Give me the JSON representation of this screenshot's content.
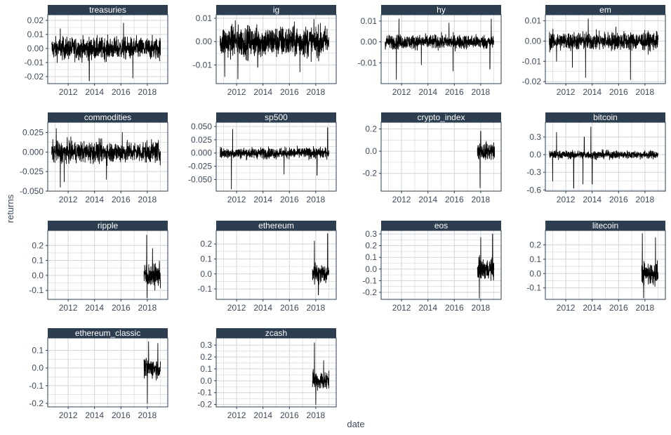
{
  "colors": {
    "strip_bg": "#2c3e50",
    "strip_text": "#ffffff",
    "panel_border": "#2c3e50",
    "grid": "#cfd3d8",
    "series": "#000000",
    "tick_text": "#3d4a5c"
  },
  "chart_data": {
    "type": "line",
    "layout": "facet-wrap 4 columns, free y scales",
    "xlabel": "date",
    "ylabel": "returns",
    "x_ticks": [
      "2012",
      "2014",
      "2016",
      "2018"
    ],
    "xlim": [
      "2010-06-01",
      "2019-06-30"
    ],
    "grid": true,
    "panels": [
      {
        "name": "treasuries",
        "start": 2010.75,
        "end": 2019.0,
        "amp": 0.007,
        "spikes": [
          [
            2013.6,
            -0.023
          ],
          [
            2016.2,
            0.018
          ],
          [
            2016.9,
            -0.021
          ],
          [
            2011.4,
            0.014
          ]
        ],
        "ylim": [
          -0.025,
          0.024
        ],
        "y_ticks": [
          -0.02,
          -0.01,
          0.0,
          0.01,
          0.02
        ],
        "y_labels": [
          "-0.02",
          "-0.01",
          "0.00",
          "0.01",
          "0.02"
        ]
      },
      {
        "name": "ig",
        "start": 2010.75,
        "end": 2019.0,
        "amp": 0.006,
        "spikes": [
          [
            2011.1,
            -0.015
          ],
          [
            2012.1,
            -0.016
          ],
          [
            2013.6,
            -0.011
          ],
          [
            2016.8,
            -0.013
          ],
          [
            2011.9,
            0.009
          ]
        ],
        "ylim": [
          -0.018,
          0.0115
        ],
        "y_ticks": [
          -0.01,
          0.0,
          0.01
        ],
        "y_labels": [
          "-0.01",
          "0.00",
          "0.01"
        ]
      },
      {
        "name": "hy",
        "start": 2010.75,
        "end": 2019.0,
        "amp": 0.003,
        "spikes": [
          [
            2011.6,
            -0.018
          ],
          [
            2011.8,
            0.011
          ],
          [
            2013.5,
            -0.011
          ],
          [
            2015.9,
            -0.014
          ],
          [
            2015.6,
            0.009
          ],
          [
            2018.7,
            -0.013
          ],
          [
            2018.8,
            0.011
          ]
        ],
        "ylim": [
          -0.02,
          0.013
        ],
        "y_ticks": [
          -0.01,
          0.0,
          0.01
        ],
        "y_labels": [
          "-0.01",
          "0.00",
          "0.01"
        ]
      },
      {
        "name": "em",
        "start": 2010.75,
        "end": 2019.0,
        "amp": 0.004,
        "spikes": [
          [
            2011.3,
            -0.01
          ],
          [
            2012.5,
            -0.013
          ],
          [
            2013.5,
            -0.018
          ],
          [
            2013.7,
            0.011
          ],
          [
            2016.9,
            -0.019
          ],
          [
            2015.8,
            0.007
          ]
        ],
        "ylim": [
          -0.021,
          0.013
        ],
        "y_ticks": [
          -0.02,
          -0.01,
          0.0,
          0.01
        ],
        "y_labels": [
          "-0.02",
          "-0.01",
          "0.00",
          "0.01"
        ]
      },
      {
        "name": "commodities",
        "start": 2010.75,
        "end": 2019.0,
        "amp": 0.012,
        "spikes": [
          [
            2011.4,
            -0.045
          ],
          [
            2011.7,
            -0.038
          ],
          [
            2011.1,
            0.03
          ],
          [
            2014.9,
            -0.035
          ],
          [
            2016.1,
            0.025
          ]
        ],
        "ylim": [
          -0.05,
          0.038
        ],
        "y_ticks": [
          -0.05,
          -0.025,
          0.0,
          0.025
        ],
        "y_labels": [
          "-0.050",
          "-0.025",
          "0.000",
          "0.025"
        ]
      },
      {
        "name": "sp500",
        "start": 2010.75,
        "end": 2019.0,
        "amp": 0.009,
        "spikes": [
          [
            2011.6,
            -0.068
          ],
          [
            2011.7,
            0.045
          ],
          [
            2015.6,
            -0.04
          ],
          [
            2018.1,
            -0.042
          ],
          [
            2018.9,
            0.048
          ]
        ],
        "ylim": [
          -0.072,
          0.058
        ],
        "y_ticks": [
          -0.05,
          -0.025,
          0.0,
          0.025,
          0.05
        ],
        "y_labels": [
          "-0.050",
          "-0.025",
          "0.000",
          "0.025",
          "0.050"
        ]
      },
      {
        "name": "crypto_index",
        "start": 2017.75,
        "end": 2019.05,
        "amp": 0.07,
        "spikes": [
          [
            2017.95,
            -0.33
          ],
          [
            2018.0,
            0.18
          ]
        ],
        "ylim": [
          -0.36,
          0.26
        ],
        "y_ticks": [
          -0.2,
          0.0,
          0.2
        ],
        "y_labels": [
          "-0.2",
          "0.0",
          "0.2"
        ]
      },
      {
        "name": "bitcoin",
        "start": 2010.75,
        "end": 2019.0,
        "amp": 0.06,
        "spikes": [
          [
            2011.0,
            -0.45
          ],
          [
            2011.3,
            0.38
          ],
          [
            2012.6,
            -0.57
          ],
          [
            2013.3,
            -0.5
          ],
          [
            2013.9,
            0.47
          ],
          [
            2014.0,
            -0.5
          ],
          [
            2013.4,
            0.3
          ]
        ],
        "ylim": [
          -0.62,
          0.55
        ],
        "y_ticks": [
          -0.6,
          -0.3,
          0.0,
          0.3
        ],
        "y_labels": [
          "-0.6",
          "-0.3",
          "0.0",
          "0.3"
        ]
      },
      {
        "name": "ripple",
        "start": 2017.75,
        "end": 2019.0,
        "amp": 0.07,
        "spikes": [
          [
            2017.95,
            0.27
          ],
          [
            2017.98,
            -0.15
          ],
          [
            2018.4,
            0.18
          ]
        ],
        "ylim": [
          -0.16,
          0.3
        ],
        "y_ticks": [
          -0.1,
          0.0,
          0.1,
          0.2
        ],
        "y_labels": [
          "-0.1",
          "0.0",
          "0.1",
          "0.2"
        ]
      },
      {
        "name": "ethereum",
        "start": 2017.75,
        "end": 2019.0,
        "amp": 0.06,
        "spikes": [
          [
            2018.9,
            0.27
          ],
          [
            2018.2,
            -0.14
          ],
          [
            2017.9,
            0.22
          ]
        ],
        "ylim": [
          -0.17,
          0.29
        ],
        "y_ticks": [
          -0.1,
          0.0,
          0.1,
          0.2
        ],
        "y_labels": [
          "-0.1",
          "0.0",
          "0.1",
          "0.2"
        ]
      },
      {
        "name": "eos",
        "start": 2017.75,
        "end": 2019.0,
        "amp": 0.08,
        "spikes": [
          [
            2017.9,
            -0.25
          ],
          [
            2018.9,
            0.3
          ],
          [
            2018.0,
            0.27
          ]
        ],
        "ylim": [
          -0.26,
          0.33
        ],
        "y_ticks": [
          -0.2,
          -0.1,
          0.0,
          0.1,
          0.2,
          0.3
        ],
        "y_labels": [
          "-0.2",
          "-0.1",
          "0.0",
          "0.1",
          "0.2",
          "0.3"
        ]
      },
      {
        "name": "litecoin",
        "start": 2017.75,
        "end": 2019.0,
        "amp": 0.07,
        "spikes": [
          [
            2017.8,
            0.28
          ],
          [
            2017.9,
            -0.17
          ],
          [
            2018.8,
            0.25
          ]
        ],
        "ylim": [
          -0.18,
          0.3
        ],
        "y_ticks": [
          -0.1,
          0.0,
          0.1,
          0.2
        ],
        "y_labels": [
          "-0.1",
          "0.0",
          "0.1",
          "0.2"
        ]
      },
      {
        "name": "ethereum_classic",
        "start": 2017.75,
        "end": 2019.0,
        "amp": 0.05,
        "spikes": [
          [
            2018.0,
            -0.2
          ],
          [
            2018.1,
            0.15
          ],
          [
            2018.8,
            0.14
          ]
        ],
        "ylim": [
          -0.22,
          0.17
        ],
        "y_ticks": [
          -0.2,
          -0.1,
          0.0,
          0.1
        ],
        "y_labels": [
          "-0.2",
          "-0.1",
          "0.0",
          "0.1"
        ]
      },
      {
        "name": "zcash",
        "start": 2017.75,
        "end": 2019.0,
        "amp": 0.07,
        "spikes": [
          [
            2017.9,
            0.32
          ],
          [
            2018.0,
            -0.2
          ],
          [
            2018.6,
            0.17
          ]
        ],
        "ylim": [
          -0.22,
          0.36
        ],
        "y_ticks": [
          -0.2,
          -0.1,
          0.0,
          0.1,
          0.2,
          0.3
        ],
        "y_labels": [
          "-0.2",
          "-0.1",
          "0.0",
          "0.1",
          "0.2",
          "0.3"
        ]
      }
    ]
  }
}
